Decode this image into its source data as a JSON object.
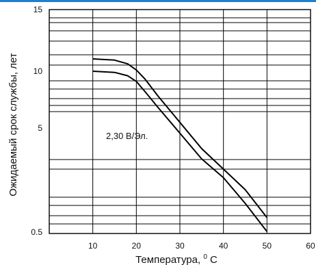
{
  "chart_data": {
    "type": "line",
    "xlabel": "Температура,",
    "xunit_sup": "0",
    "xunit_tail": "C",
    "ylabel": "Ожидаемый срок службы, лет",
    "x_ticks": [
      "10",
      "20",
      "30",
      "40",
      "50",
      "60"
    ],
    "x_tick_values": [
      10,
      20,
      30,
      40,
      50,
      60
    ],
    "y_ticks": [
      "15",
      "10",
      "5",
      "0.5"
    ],
    "xlim": [
      0,
      60
    ],
    "grid": true,
    "annotation": "2,30 В/Эл.",
    "series": [
      {
        "x": [
          10,
          15,
          18,
          20,
          22,
          25,
          30,
          35,
          40,
          45,
          50
        ],
        "y": [
          11.0,
          10.9,
          10.6,
          10.1,
          9.3,
          7.8,
          5.5,
          3.8,
          2.6,
          1.7,
          0.9
        ]
      },
      {
        "x": [
          10,
          15,
          18,
          20,
          22,
          25,
          30,
          35,
          40,
          45,
          50
        ],
        "y": [
          10.0,
          9.9,
          9.6,
          9.1,
          8.2,
          6.8,
          4.7,
          3.2,
          2.1,
          1.3,
          0.55
        ]
      }
    ],
    "line_color": "#000000"
  }
}
